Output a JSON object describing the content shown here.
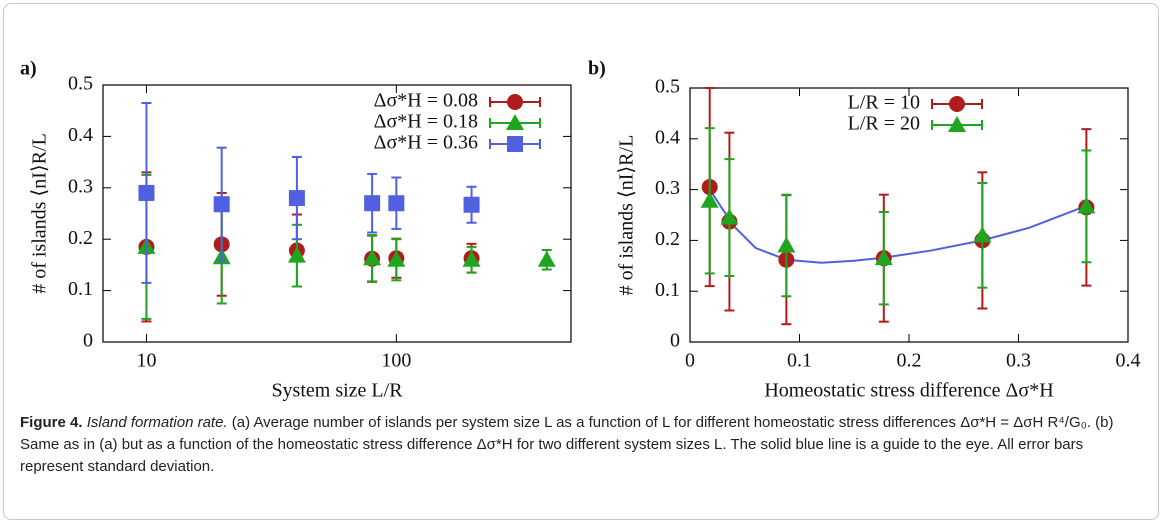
{
  "chart_data": [
    {
      "type": "scatter",
      "panel_label": "a)",
      "x_label": "System size L/R",
      "y_label": "# of islands ⟨nI⟩R/L",
      "xlog": true,
      "xlim": [
        6.7,
        500
      ],
      "xticks": [
        10,
        100
      ],
      "ylim": [
        0,
        0.5
      ],
      "yticks": [
        0,
        0.1,
        0.2,
        0.3,
        0.4,
        0.5
      ],
      "series": [
        {
          "name": "Δσ*H = 0.08",
          "color": "#b01c1c",
          "marker": "circle",
          "x": [
            10,
            20,
            40,
            80,
            100,
            200
          ],
          "values": [
            0.185,
            0.19,
            0.178,
            0.162,
            0.163,
            0.163
          ],
          "errors": [
            0.145,
            0.1,
            0.07,
            0.045,
            0.038,
            0.028
          ]
        },
        {
          "name": "Δσ*H = 0.18",
          "color": "#1fa51f",
          "marker": "triangle",
          "x": [
            10,
            20,
            40,
            80,
            100,
            200,
            400
          ],
          "values": [
            0.185,
            0.165,
            0.168,
            0.163,
            0.16,
            0.16,
            0.16
          ],
          "errors": [
            0.14,
            0.09,
            0.06,
            0.045,
            0.04,
            0.025,
            0.019
          ]
        },
        {
          "name": "Δσ*H = 0.36",
          "color": "#5060e0",
          "marker": "square",
          "x": [
            10,
            20,
            40,
            80,
            100,
            200
          ],
          "values": [
            0.29,
            0.268,
            0.28,
            0.27,
            0.27,
            0.267
          ],
          "errors": [
            0.175,
            0.11,
            0.08,
            0.057,
            0.05,
            0.035
          ]
        }
      ]
    },
    {
      "type": "scatter",
      "panel_label": "b)",
      "x_label": "Homeostatic stress difference Δσ*H",
      "y_label": "# of islands ⟨nI⟩R/L",
      "xlog": false,
      "xlim": [
        0,
        0.4
      ],
      "xticks": [
        0,
        0.1,
        0.2,
        0.3,
        0.4
      ],
      "ylim": [
        0,
        0.5
      ],
      "yticks": [
        0,
        0.1,
        0.2,
        0.3,
        0.4,
        0.5
      ],
      "series": [
        {
          "name": "L/R = 10",
          "color": "#b01c1c",
          "marker": "circle",
          "x": [
            0.018,
            0.036,
            0.088,
            0.177,
            0.267,
            0.362
          ],
          "values": [
            0.305,
            0.237,
            0.162,
            0.165,
            0.2,
            0.265
          ],
          "errors": [
            0.195,
            0.175,
            0.127,
            0.125,
            0.134,
            0.154
          ]
        },
        {
          "name": "L/R = 20",
          "color": "#1fa51f",
          "marker": "triangle",
          "x": [
            0.018,
            0.036,
            0.088,
            0.177,
            0.267,
            0.362
          ],
          "values": [
            0.278,
            0.245,
            0.19,
            0.165,
            0.21,
            0.267
          ],
          "errors": [
            0.143,
            0.115,
            0.1,
            0.091,
            0.103,
            0.11
          ]
        }
      ],
      "guide_curve": {
        "color": "#5060e0",
        "x": [
          0.018,
          0.04,
          0.06,
          0.088,
          0.12,
          0.15,
          0.177,
          0.22,
          0.267,
          0.31,
          0.362
        ],
        "values": [
          0.3,
          0.228,
          0.185,
          0.162,
          0.156,
          0.16,
          0.166,
          0.18,
          0.2,
          0.225,
          0.268
        ]
      }
    }
  ],
  "caption": {
    "label": "Figure 4.",
    "title": "Island formation rate.",
    "text": "(a) Average number of islands per system size L as a function of L for different homeostatic stress differences Δσ*H = ΔσH R⁴/G₀. (b) Same as in (a) but as a function of the homeostatic stress difference Δσ*H for two different system sizes L. The solid blue line is a guide to the eye. All error bars represent standard deviation."
  }
}
